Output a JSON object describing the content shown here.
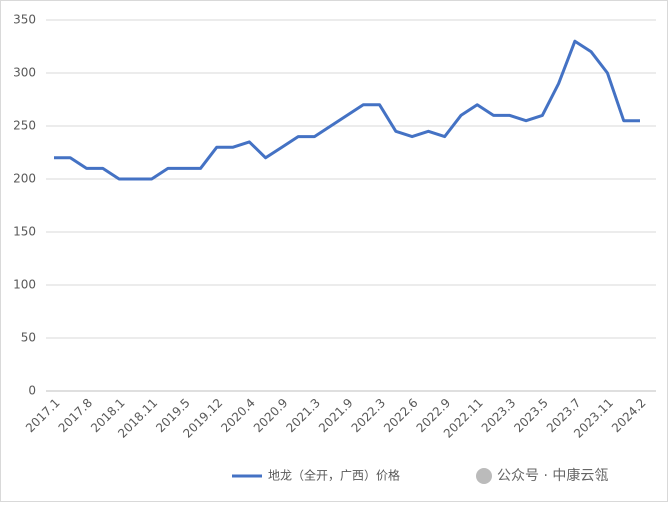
{
  "chart_data": {
    "type": "line",
    "categories": [
      "2017.1",
      null,
      "2017.8",
      null,
      "2018.1",
      null,
      "2018.11",
      null,
      "2019.5",
      null,
      "2019.12",
      null,
      "2020.4",
      null,
      "2020.9",
      null,
      "2021.3",
      null,
      "2021.9",
      null,
      "2022.3",
      null,
      "2022.6",
      null,
      "2022.9",
      null,
      "2022.11",
      null,
      "2023.3",
      null,
      "2023.5",
      null,
      "2023.7",
      null,
      "2023.11",
      null,
      "2024.2"
    ],
    "series": [
      {
        "name": "地龙（全开，广西）价格",
        "color": "#4472c4",
        "values": [
          220,
          220,
          210,
          210,
          200,
          200,
          200,
          210,
          210,
          210,
          230,
          230,
          235,
          220,
          230,
          240,
          240,
          250,
          260,
          270,
          270,
          245,
          240,
          245,
          240,
          260,
          270,
          260,
          260,
          255,
          260,
          290,
          330,
          320,
          300,
          255,
          255
        ]
      }
    ],
    "ylim": [
      0,
      350
    ],
    "yticks": [
      0,
      50,
      100,
      150,
      200,
      250,
      300,
      350
    ],
    "grid": true,
    "legend": "bottom",
    "watermark": "公众号 · 中康云瓴"
  }
}
